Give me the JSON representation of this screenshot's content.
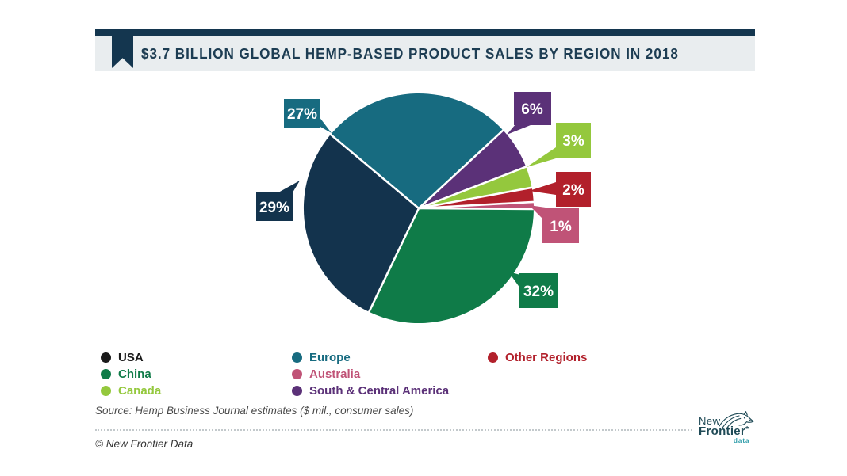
{
  "header": {
    "title": "$3.7 BILLION GLOBAL HEMP-BASED PRODUCT SALES BY REGION IN 2018"
  },
  "chart_data": {
    "type": "pie",
    "title": "$3.7 Billion Global Hemp-Based Product Sales by Region in 2018",
    "total": "$3.7 billion",
    "year": "2018",
    "unit": "percent of global sales",
    "start_angle_deg": 140,
    "direction": "clockwise",
    "legend_position": "bottom",
    "slices": [
      {
        "label": "Europe",
        "value": 27,
        "pct_label": "27%",
        "color": "#176b80"
      },
      {
        "label": "South & Central America",
        "value": 6,
        "pct_label": "6%",
        "color": "#5b3178"
      },
      {
        "label": "Canada",
        "value": 3,
        "pct_label": "3%",
        "color": "#94c83d"
      },
      {
        "label": "Other Regions",
        "value": 2,
        "pct_label": "2%",
        "color": "#b2202b"
      },
      {
        "label": "Australia",
        "value": 1,
        "pct_label": "1%",
        "color": "#c05377"
      },
      {
        "label": "China",
        "value": 32,
        "pct_label": "32%",
        "color": "#0f7b48"
      },
      {
        "label": "USA",
        "value": 29,
        "pct_label": "29%",
        "color": "#13334d"
      }
    ]
  },
  "legend": {
    "columns": [
      {
        "items": [
          {
            "label": "USA",
            "color": "#1a1a1a"
          },
          {
            "label": "China",
            "color": "#0f7b48"
          },
          {
            "label": "Canada",
            "color": "#94c83d"
          }
        ]
      },
      {
        "items": [
          {
            "label": "Europe",
            "color": "#176b80"
          },
          {
            "label": "Australia",
            "color": "#c05377"
          },
          {
            "label": "South & Central America",
            "color": "#5b3178"
          }
        ]
      },
      {
        "items": [
          {
            "label": "Other Regions",
            "color": "#b2202b"
          }
        ]
      }
    ]
  },
  "footer": {
    "source": "Source: Hemp Business Journal estimates ($ mil., consumer sales)",
    "copyright": "© New Frontier Data"
  },
  "logo": {
    "line1": "New",
    "line2": "Frontier",
    "mark": "*",
    "line3": "data"
  },
  "colors": {
    "header_bar": "#14364f",
    "title_band": "#e9edef",
    "title_text": "#1d3d53"
  }
}
